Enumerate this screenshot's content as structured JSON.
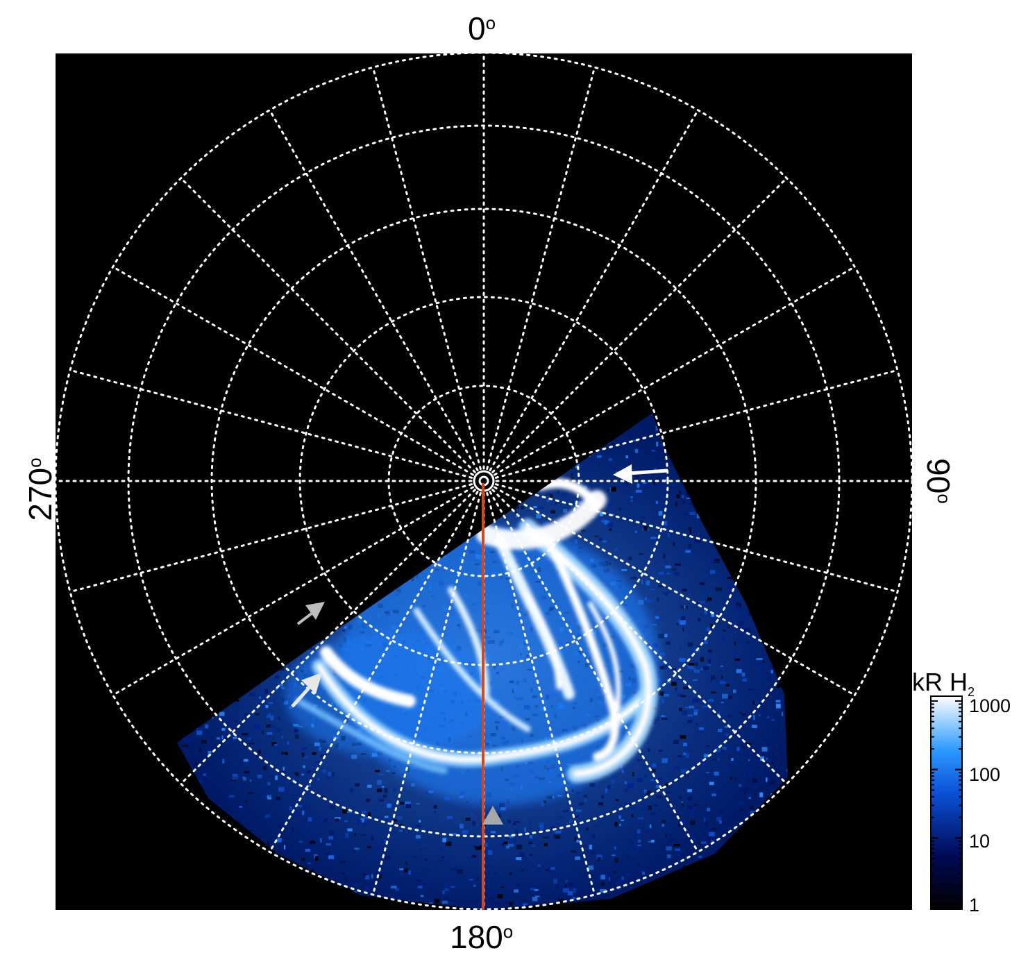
{
  "labels": {
    "top": "0",
    "bottom": "180",
    "left": "270",
    "right": "90",
    "degree": "o"
  },
  "colorbar": {
    "title": "kR H",
    "title_sub": "2",
    "ticks": [
      "1000",
      "100",
      "10",
      "1"
    ]
  },
  "colors": {
    "background": "#000000",
    "grid": "#ffffff",
    "meridian_line": "#d8461b",
    "arrow_white": "#ffffff",
    "arrow_grey": "#a8a8a8",
    "aurora_light": "#eaf6ff",
    "aurora_mid": "#1f84ff",
    "aurora_dark": "#00124a"
  }
}
